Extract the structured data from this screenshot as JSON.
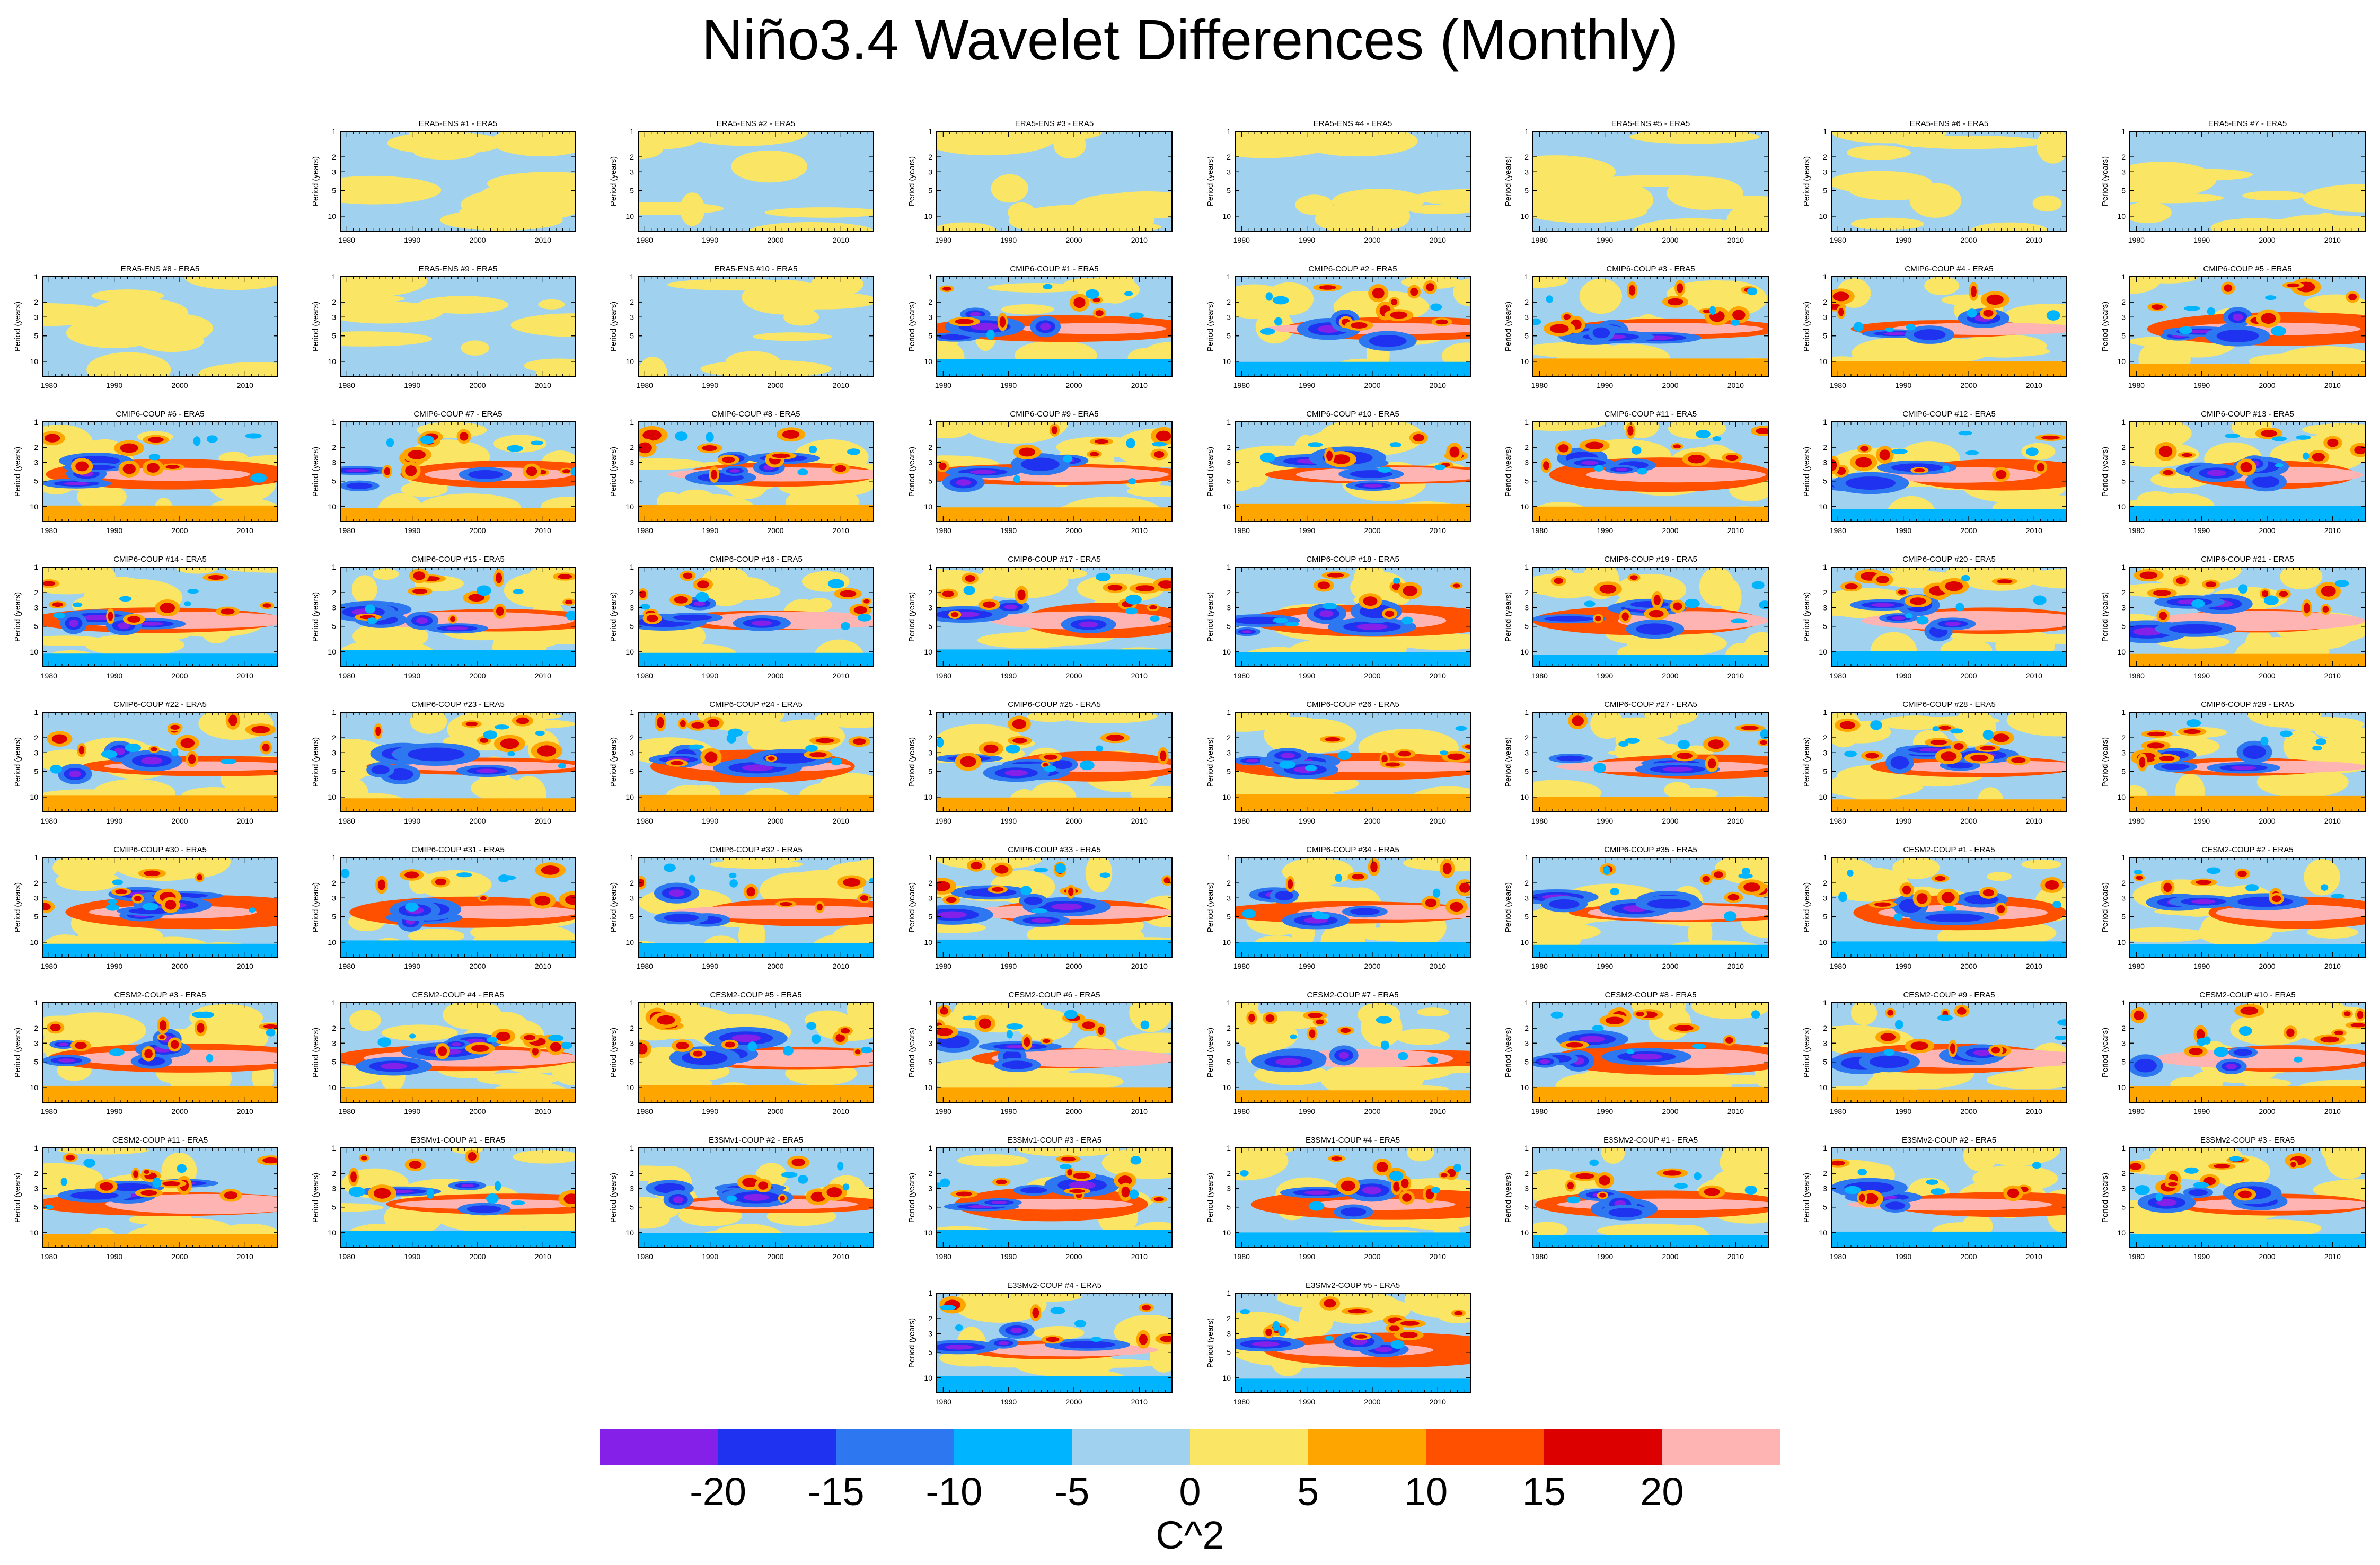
{
  "title": "Niño3.4 Wavelet Differences (Monthly)",
  "y_axis_label": "Period (years)",
  "y_ticks": [
    "1",
    "2",
    "3",
    "5",
    "10"
  ],
  "x_ticks": [
    "1980",
    "1990",
    "2000",
    "2010"
  ],
  "chart_data": {
    "type": "heatmap",
    "description_note": "contour-filled wavelet power difference panels, member minus ERA5",
    "x_range": [
      1979,
      2015
    ],
    "y_range_years": [
      1,
      15
    ],
    "y_scale": "log, reversed",
    "panel_titles": [
      "ERA5-ENS   #1 - ERA5",
      "ERA5-ENS   #2 - ERA5",
      "ERA5-ENS   #3 - ERA5",
      "ERA5-ENS   #4 - ERA5",
      "ERA5-ENS   #5 - ERA5",
      "ERA5-ENS   #6 - ERA5",
      "ERA5-ENS   #7 - ERA5",
      "ERA5-ENS   #8 - ERA5",
      "ERA5-ENS   #9 - ERA5",
      "ERA5-ENS   #10 - ERA5",
      "CMIP6-COUP  #1 - ERA5",
      "CMIP6-COUP  #2 - ERA5",
      "CMIP6-COUP  #3 - ERA5",
      "CMIP6-COUP  #4 - ERA5",
      "CMIP6-COUP  #5 - ERA5",
      "CMIP6-COUP  #6 - ERA5",
      "CMIP6-COUP  #7 - ERA5",
      "CMIP6-COUP  #8 - ERA5",
      "CMIP6-COUP  #9 - ERA5",
      "CMIP6-COUP  #10 - ERA5",
      "CMIP6-COUP  #11 - ERA5",
      "CMIP6-COUP  #12 - ERA5",
      "CMIP6-COUP  #13 - ERA5",
      "CMIP6-COUP  #14 - ERA5",
      "CMIP6-COUP  #15 - ERA5",
      "CMIP6-COUP  #16 - ERA5",
      "CMIP6-COUP  #17 - ERA5",
      "CMIP6-COUP  #18 - ERA5",
      "CMIP6-COUP  #19 - ERA5",
      "CMIP6-COUP  #20 - ERA5",
      "CMIP6-COUP  #21 - ERA5",
      "CMIP6-COUP  #22 - ERA5",
      "CMIP6-COUP  #23 - ERA5",
      "CMIP6-COUP  #24 - ERA5",
      "CMIP6-COUP  #25 - ERA5",
      "CMIP6-COUP  #26 - ERA5",
      "CMIP6-COUP  #27 - ERA5",
      "CMIP6-COUP  #28 - ERA5",
      "CMIP6-COUP  #29 - ERA5",
      "CMIP6-COUP  #30 - ERA5",
      "CMIP6-COUP  #31 - ERA5",
      "CMIP6-COUP  #32 - ERA5",
      "CMIP6-COUP  #33 - ERA5",
      "CMIP6-COUP  #34 - ERA5",
      "CMIP6-COUP  #35 - ERA5",
      "CESM2-COUP  #1 - ERA5",
      "CESM2-COUP  #2 - ERA5",
      "CESM2-COUP  #3 - ERA5",
      "CESM2-COUP  #4 - ERA5",
      "CESM2-COUP  #5 - ERA5",
      "CESM2-COUP  #6 - ERA5",
      "CESM2-COUP  #7 - ERA5",
      "CESM2-COUP  #8 - ERA5",
      "CESM2-COUP  #9 - ERA5",
      "CESM2-COUP  #10 - ERA5",
      "CESM2-COUP  #11 - ERA5",
      "E3SMv1-COUP  #1 - ERA5",
      "E3SMv1-COUP  #2 - ERA5",
      "E3SMv1-COUP  #3 - ERA5",
      "E3SMv1-COUP  #4 - ERA5",
      "E3SMv2-COUP  #1 - ERA5",
      "E3SMv2-COUP  #2 - ERA5",
      "E3SMv2-COUP  #3 - ERA5",
      "E3SMv2-COUP  #4 - ERA5",
      "E3SMv2-COUP  #5 - ERA5"
    ],
    "panel_intensity": [
      0,
      0,
      0,
      0,
      0,
      0,
      0,
      0,
      0,
      0,
      1,
      1,
      1,
      1,
      1,
      1,
      1,
      1,
      1,
      1,
      1,
      1,
      1,
      1,
      1,
      1,
      1,
      1,
      1,
      1,
      1,
      1,
      1,
      1,
      1,
      1,
      1,
      1,
      1,
      1,
      1,
      1,
      1,
      1,
      1,
      1,
      1,
      1,
      1,
      1,
      1,
      1,
      1,
      1,
      1,
      1,
      1,
      1,
      1,
      1,
      1,
      1,
      1,
      1,
      1
    ],
    "colorbar": {
      "levels": [
        -25,
        -20,
        -15,
        -10,
        -5,
        0,
        5,
        10,
        15,
        20,
        25
      ],
      "tick_labels": [
        "-20",
        "-15",
        "-10",
        "-5",
        "0",
        "5",
        "10",
        "15",
        "20"
      ],
      "colors": [
        "#8520e8",
        "#1e32f0",
        "#2d78f0",
        "#00b4ff",
        "#a0d2f0",
        "#fae664",
        "#ffa500",
        "#ff5000",
        "#dc0000",
        "#ffb4b4"
      ],
      "label": "C^2"
    }
  }
}
